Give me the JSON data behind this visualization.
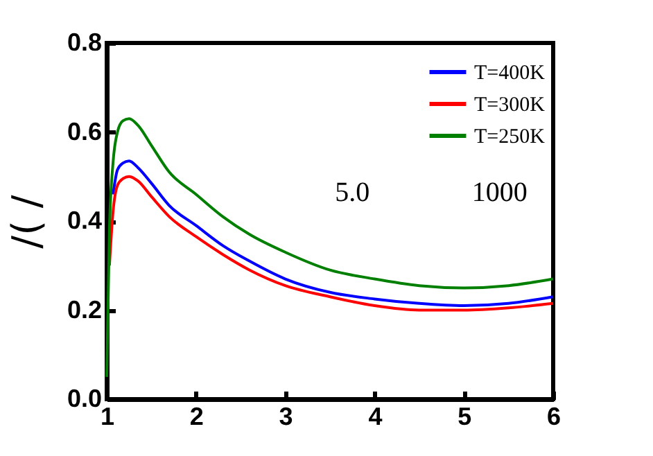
{
  "chart_data": {
    "type": "line",
    "ylabel": "/(  /",
    "x": [
      1.0,
      1.03,
      1.07,
      1.12,
      1.18,
      1.25,
      1.35,
      1.5,
      1.7,
      2,
      2.3,
      2.6,
      3,
      3.5,
      4,
      4.5,
      5,
      5.5,
      6
    ],
    "series": [
      {
        "name": "T=400K",
        "color": "#0000ff",
        "values": [
          null,
          null,
          0.46,
          0.515,
          0.53,
          0.535,
          0.52,
          0.485,
          0.435,
          0.39,
          0.345,
          0.31,
          0.27,
          0.24,
          0.225,
          0.215,
          0.21,
          0.215,
          0.23
        ]
      },
      {
        "name": "T=300K",
        "color": "#ff0000",
        "values": [
          null,
          0.3,
          0.42,
          0.48,
          0.495,
          0.5,
          0.49,
          0.455,
          0.41,
          0.365,
          0.325,
          0.29,
          0.255,
          0.23,
          0.21,
          0.2,
          0.2,
          0.205,
          0.215
        ]
      },
      {
        "name": "T=250K",
        "color": "#007f00",
        "values": [
          0.05,
          0.38,
          0.53,
          0.6,
          0.625,
          0.63,
          0.615,
          0.57,
          0.51,
          0.46,
          0.41,
          0.37,
          0.33,
          0.29,
          0.27,
          0.255,
          0.25,
          0.255,
          0.27
        ]
      }
    ],
    "xlim": [
      1,
      6
    ],
    "xticks": [
      1,
      2,
      3,
      4,
      5,
      6
    ],
    "ylim": [
      0,
      0.8
    ],
    "yticks": [
      {
        "value": 0,
        "label": "0.0"
      },
      {
        "value": 0.2,
        "label": "0.2"
      },
      {
        "value": 0.4,
        "label": "0.4"
      },
      {
        "value": 0.6,
        "label": "0.6"
      },
      {
        "value": 0.8,
        "label": "0.8"
      }
    ],
    "annotations": [
      "5.0",
      "1000"
    ],
    "legend": "top right",
    "grid": false,
    "line_style": "solid",
    "marker": "none"
  }
}
